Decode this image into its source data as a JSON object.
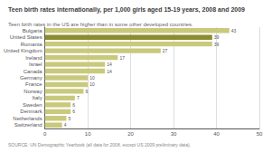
{
  "chart_data": {
    "type": "bar",
    "orientation": "horizontal",
    "title": "Teen birth rates internationally, per 1,000 girls aged 15-19 years, 2008 and 2009",
    "subtitle": "Teen birth rates in the US are higher than in some other developed countries.",
    "annotations": [
      "SOURCE: UN Demographic Yearbook (all data for 2008, except US 2009 preliminary data)."
    ],
    "categories": [
      "Bulgaria",
      "United States",
      "Romania",
      "United Kingdom",
      "Ireland",
      "Israel",
      "Canada",
      "Germany",
      "France",
      "Norway",
      "Italy",
      "Sweden",
      "Denmark",
      "Netherlands",
      "Switzerland"
    ],
    "values": [
      43,
      39,
      39,
      27,
      17,
      14,
      14,
      10,
      10,
      9,
      7,
      6,
      6,
      5,
      4
    ],
    "colors": [
      "#c9c97d",
      "#8b8b30",
      "#c9c97d",
      "#c9c97d",
      "#c9c97d",
      "#c9c97d",
      "#c9c97d",
      "#c9c97d",
      "#c9c97d",
      "#c9c97d",
      "#c9c97d",
      "#c9c97d",
      "#c9c97d",
      "#c9c97d",
      "#c9c97d"
    ],
    "xlim": [
      0,
      50
    ],
    "xticks": [
      0,
      10,
      20,
      30,
      40,
      50
    ],
    "grid": true,
    "data_labels": true
  }
}
